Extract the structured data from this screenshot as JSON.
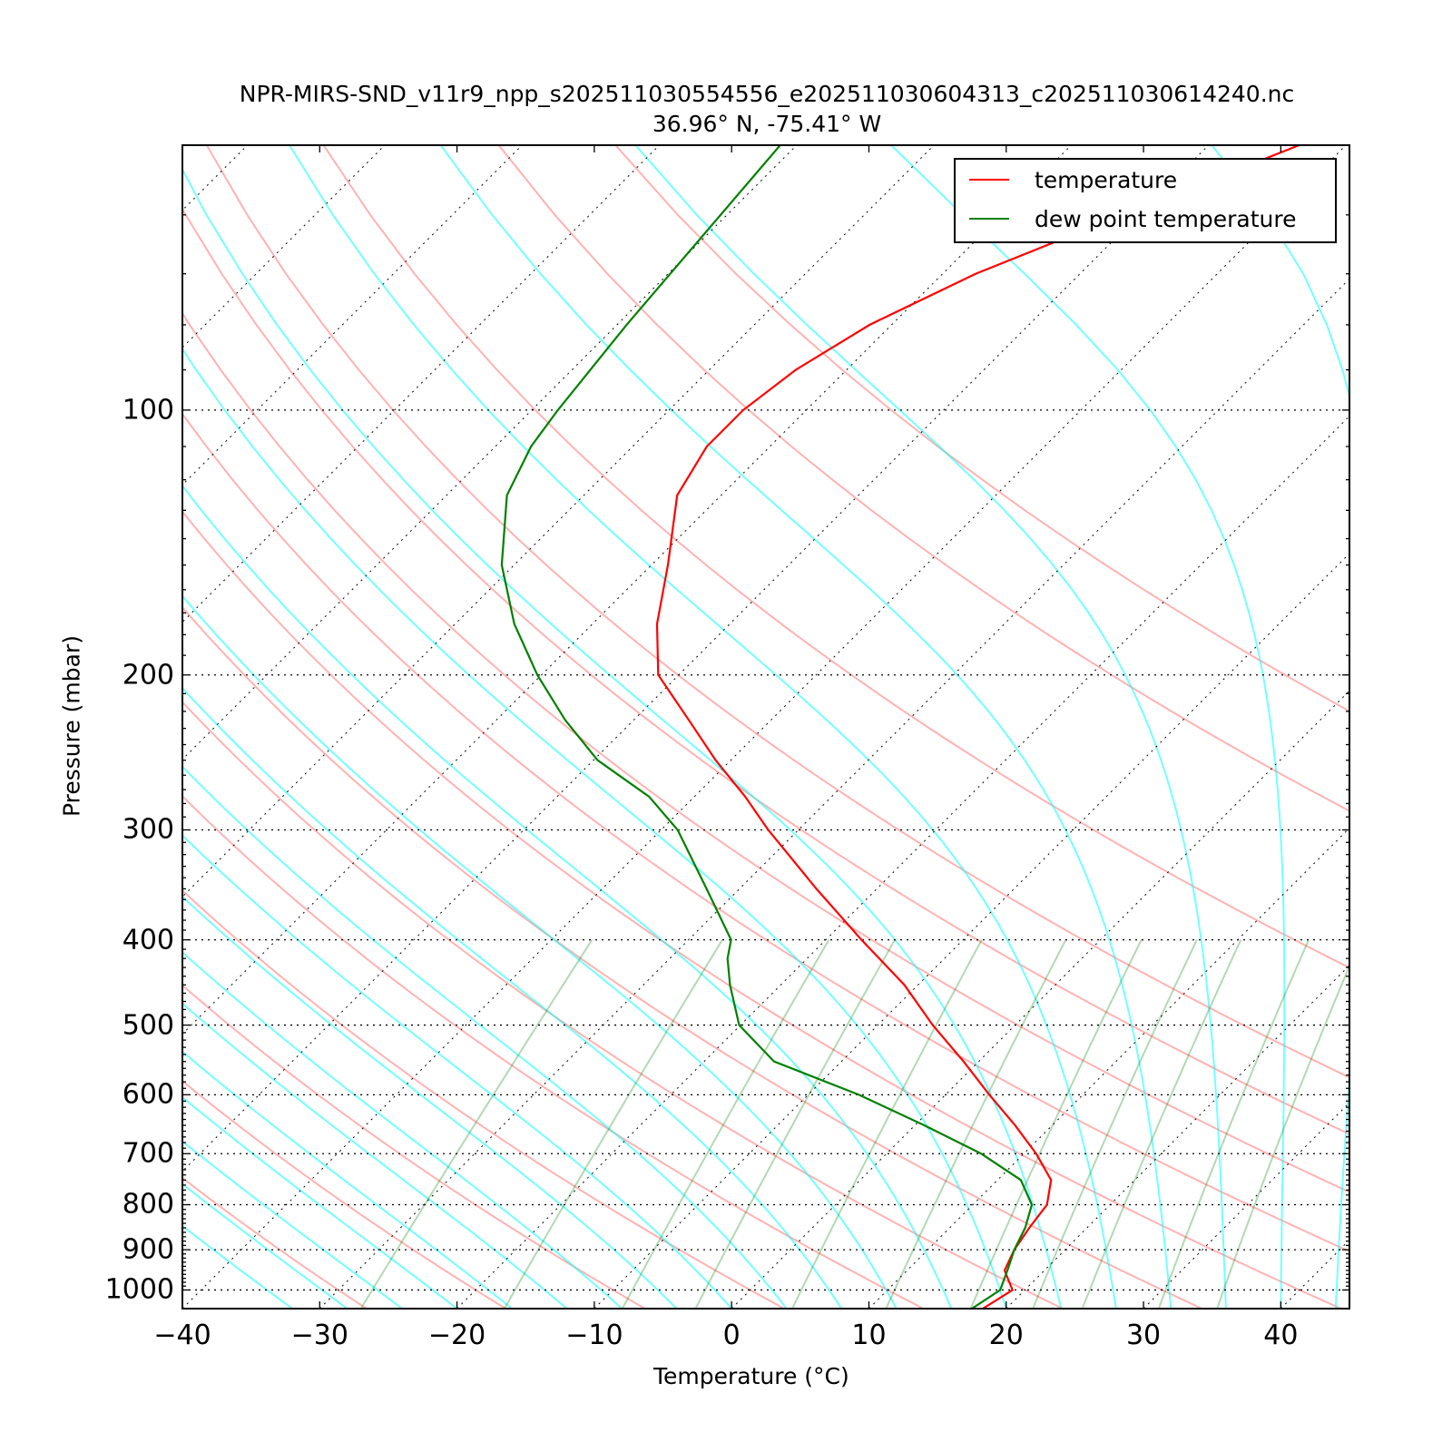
{
  "chart_data": {
    "type": "line",
    "chart_kind": "Skew-T log-P diagram",
    "title": "NPR-MIRS-SND_v11r9_npp_s202511030554556_e202511030604313_c202511030614240.nc",
    "subtitle": "36.96° N, -75.41° W",
    "xlabel": "Temperature (°C)",
    "ylabel": "Pressure (mbar)",
    "xlim": [
      -40,
      45
    ],
    "ylim": [
      1050,
      50
    ],
    "y_scale": "log",
    "x_skew": "temperature isotherms skewed 45°",
    "x_ticks": [
      "−40",
      "−30",
      "−20",
      "−10",
      "0",
      "10",
      "20",
      "30",
      "40"
    ],
    "x_tick_values": [
      -40,
      -30,
      -20,
      -10,
      0,
      10,
      20,
      30,
      40
    ],
    "y_ticks": [
      "100",
      "200",
      "300",
      "400",
      "500",
      "600",
      "700",
      "800",
      "900",
      "1000"
    ],
    "y_tick_values": [
      100,
      200,
      300,
      400,
      500,
      600,
      700,
      800,
      900,
      1000
    ],
    "legend": {
      "placement": "top-right",
      "entries": [
        "temperature",
        "dew point temperature"
      ]
    },
    "series": [
      {
        "name": "temperature",
        "color": "#ff0000",
        "pressure": [
          1050,
          1000,
          950,
          900,
          850,
          800,
          750,
          700,
          650,
          600,
          550,
          500,
          450,
          400,
          350,
          300,
          275,
          250,
          225,
          200,
          175,
          150,
          125,
          110,
          100,
          90,
          80,
          70,
          60,
          50
        ],
        "temperature": [
          18.3,
          19.1,
          17.1,
          16.3,
          15.8,
          15.4,
          13.9,
          10.9,
          7.3,
          3.2,
          -1.1,
          -6.0,
          -11.0,
          -17.4,
          -24.4,
          -32.2,
          -36.3,
          -41.1,
          -46.0,
          -51.5,
          -55.3,
          -58.8,
          -63.2,
          -64.6,
          -64.6,
          -63.7,
          -61.6,
          -57.6,
          -51.2,
          -43.4
        ]
      },
      {
        "name": "dew point temperature",
        "color": "#008000",
        "pressure": [
          1050,
          1000,
          950,
          900,
          850,
          800,
          750,
          700,
          650,
          600,
          550,
          500,
          450,
          420,
          400,
          350,
          300,
          275,
          250,
          225,
          200,
          175,
          150,
          125,
          110,
          100,
          80,
          50
        ],
        "temperature": [
          17.5,
          18.2,
          17.3,
          16.3,
          15.5,
          14.3,
          11.7,
          6.9,
          0.7,
          -6.3,
          -14.9,
          -20.1,
          -23.7,
          -25.8,
          -26.9,
          -32.4,
          -38.8,
          -43.3,
          -49.7,
          -55.0,
          -60.3,
          -65.7,
          -70.9,
          -75.6,
          -77.4,
          -78.1,
          -79.3,
          -81.2
        ]
      }
    ],
    "background_lines": {
      "dry_adiabats_color": "#ff0000",
      "moist_adiabats_color": "#00ffff",
      "mixing_ratio_color": "#008000",
      "isobars_style": "dotted black",
      "isotherms_style": "dotted black"
    }
  }
}
